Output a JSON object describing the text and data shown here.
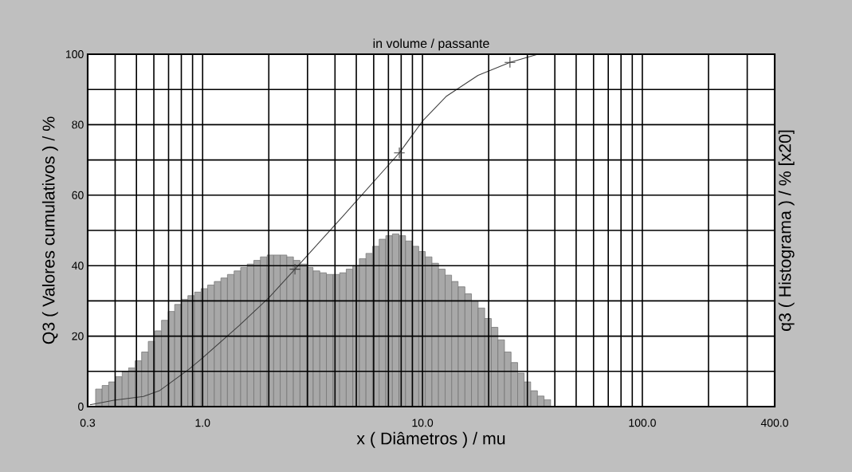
{
  "chart_data": {
    "type": "histogram",
    "title": "in volume / passante",
    "xlabel": "x ( Diâmetros ) / mu",
    "ylabel": "Q3 ( Valores cumulativos ) / %",
    "y2label": "q3 ( Histograma ) / % [x20]",
    "log": "x",
    "grid": true,
    "xlim": [
      0.3,
      400
    ],
    "ylim": [
      0,
      100
    ],
    "xticks": [
      {
        "value": 0.3,
        "label": "0.3"
      },
      {
        "value": 0.4,
        "label": null
      },
      {
        "value": 0.5,
        "label": null
      },
      {
        "value": 0.6,
        "label": null
      },
      {
        "value": 0.7,
        "label": null
      },
      {
        "value": 0.8,
        "label": null
      },
      {
        "value": 0.9,
        "label": null
      },
      {
        "value": 1,
        "label": "1.0"
      },
      {
        "value": 2,
        "label": null
      },
      {
        "value": 3,
        "label": null
      },
      {
        "value": 4,
        "label": null
      },
      {
        "value": 5,
        "label": null
      },
      {
        "value": 6,
        "label": null
      },
      {
        "value": 7,
        "label": null
      },
      {
        "value": 8,
        "label": null
      },
      {
        "value": 9,
        "label": null
      },
      {
        "value": 10,
        "label": "10.0"
      },
      {
        "value": 20,
        "label": null
      },
      {
        "value": 30,
        "label": null
      },
      {
        "value": 40,
        "label": null
      },
      {
        "value": 50,
        "label": null
      },
      {
        "value": 60,
        "label": null
      },
      {
        "value": 70,
        "label": null
      },
      {
        "value": 80,
        "label": null
      },
      {
        "value": 90,
        "label": null
      },
      {
        "value": 100,
        "label": "100.0"
      },
      {
        "value": 200,
        "label": null
      },
      {
        "value": 300,
        "label": null
      },
      {
        "value": 400,
        "label": "400.0"
      }
    ],
    "yticks": [
      0,
      {
        "value": 10,
        "label": null
      },
      20,
      {
        "value": 30,
        "label": null
      },
      40,
      {
        "value": 50,
        "label": null
      },
      60,
      {
        "value": 70,
        "label": null
      },
      80,
      {
        "value": 90,
        "label": null
      },
      100
    ],
    "series": [
      {
        "color": "#a8a8a8",
        "bins": [
          0.326,
          0.349,
          0.374,
          0.401,
          0.43,
          0.46,
          0.493,
          0.528,
          0.566,
          0.607,
          0.65,
          0.697,
          0.746,
          0.8,
          0.857,
          0.918,
          0.984,
          1.054,
          1.13,
          1.211,
          1.297,
          1.39,
          1.489,
          1.596,
          1.71,
          1.832,
          1.963,
          2.104,
          2.254,
          2.415,
          2.588,
          2.773,
          2.972,
          3.184,
          3.412,
          3.656,
          3.917,
          4.198,
          4.498,
          4.819,
          5.164,
          5.534,
          5.929,
          6.353,
          6.808,
          7.295,
          7.816,
          8.375,
          8.974,
          9.616,
          10.3,
          11.04,
          11.83,
          12.68,
          13.58,
          14.55,
          15.6,
          16.71,
          17.91,
          19.19,
          20.56,
          22.03,
          23.6,
          25.29,
          27.1,
          29.04,
          31.12,
          33.34,
          35.73,
          38.28
        ],
        "values": [
          5,
          6,
          7,
          8.5,
          10,
          11,
          13,
          15.5,
          18.5,
          21.5,
          24.5,
          27,
          29,
          30.5,
          31.5,
          32.5,
          33.5,
          34.5,
          35.5,
          36.5,
          37.5,
          38.5,
          39.5,
          40.5,
          41.5,
          42.5,
          43,
          43,
          43,
          42.5,
          41.5,
          40.5,
          39.5,
          38.5,
          38,
          37.5,
          37.5,
          38,
          39,
          40,
          42,
          43.5,
          45.5,
          47.5,
          48.5,
          49,
          48.5,
          47,
          45.5,
          44,
          42.5,
          40.7,
          39,
          37.3,
          35.5,
          34,
          32,
          30,
          28,
          25,
          22.5,
          19,
          15.5,
          12.5,
          9.5,
          7,
          4.5,
          3,
          2
        ]
      },
      {
        "type": "line",
        "color": "#404040",
        "x": [
          0.307,
          0.395,
          0.538,
          0.636,
          0.866,
          0.99,
          1.466,
          2.01,
          2.63,
          3.38,
          4.34,
          7.85,
          10.0,
          12.8,
          17.9,
          25.0,
          33.5
        ],
        "values": [
          0.5,
          1.8,
          2.9,
          4.5,
          10.6,
          13.6,
          23,
          31,
          39,
          46.5,
          54,
          72,
          81,
          88,
          94,
          97.7,
          100
        ]
      },
      {
        "type": "scatter",
        "color": "#404040",
        "marker": "cross",
        "x": [
          2.63,
          7.85,
          25.0
        ],
        "values": [
          39,
          72,
          97.7
        ]
      }
    ]
  }
}
